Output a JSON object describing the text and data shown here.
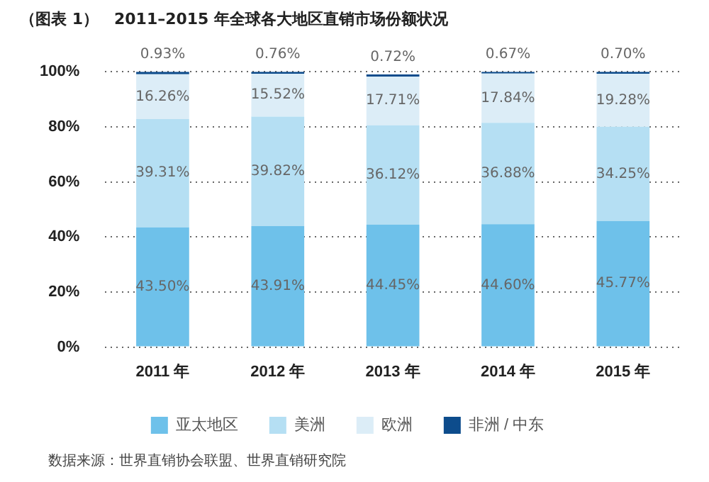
{
  "chart_data": {
    "type": "bar",
    "stacked": true,
    "title": "（图表 1）　2011–2015 年全球各大地区直销市场份额状况",
    "categories": [
      "2011 年",
      "2012 年",
      "2013 年",
      "2014 年",
      "2015 年"
    ],
    "series": [
      {
        "name": "亚太地区",
        "color": "#6ec1ea",
        "values": [
          43.5,
          43.91,
          44.45,
          44.6,
          45.77
        ],
        "value_labels": [
          "43.50%",
          "43.91%",
          "44.45%",
          "44.60%",
          "45.77%"
        ]
      },
      {
        "name": "美洲",
        "color": "#b5dff3",
        "values": [
          39.31,
          39.82,
          36.12,
          36.88,
          34.25
        ],
        "value_labels": [
          "39.31%",
          "39.82%",
          "36.12%",
          "36.88%",
          "34.25%"
        ]
      },
      {
        "name": "欧洲",
        "color": "#dcedf7",
        "values": [
          16.26,
          15.52,
          17.71,
          17.84,
          19.28
        ],
        "value_labels": [
          "16.26%",
          "15.52%",
          "17.71%",
          "17.84%",
          "19.28%"
        ]
      },
      {
        "name": "非洲 / 中东",
        "color": "#0d4c8c",
        "values": [
          0.93,
          0.76,
          0.72,
          0.67,
          0.7
        ],
        "value_labels": [
          "0.93%",
          "0.76%",
          "0.72%",
          "0.67%",
          "0.70%"
        ]
      }
    ],
    "ylim": [
      0,
      100
    ],
    "yticks": [
      {
        "value": 0,
        "label": "0%"
      },
      {
        "value": 20,
        "label": "20%"
      },
      {
        "value": 40,
        "label": "40%"
      },
      {
        "value": 60,
        "label": "60%"
      },
      {
        "value": 80,
        "label": "80%"
      },
      {
        "value": 100,
        "label": "100%"
      }
    ],
    "grid": "y",
    "legend": "bottom",
    "annotations": [
      "数据来源：世界直销协会联盟、世界直销研究院"
    ]
  }
}
